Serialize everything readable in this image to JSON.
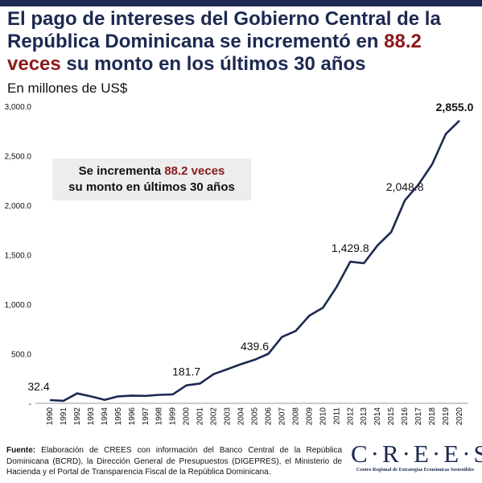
{
  "title": {
    "part1": "El pago de intereses del Gobierno Central de la República Dominicana se incrementó en ",
    "highlight": "88.2 veces",
    "part2": " su monto en los últimos 30 años"
  },
  "colors": {
    "navy": "#1c2951",
    "accent": "#8b1a1a",
    "callout_bg": "#ededed"
  },
  "callout": {
    "part1": "Se incrementa ",
    "highlight": "88.2 veces",
    "part2": " su monto en últimos 30 años"
  },
  "footnote": {
    "label": "Fuente:",
    "text": " Elaboración de CREES con información del Banco Central de la República Dominicana (BCRD), la Dirección General de Presupuestos (DIGEPRES), el Ministerio de Hacienda y el Portal de Transparencia Fiscal de la República Dominicana."
  },
  "logo": {
    "word": "CREES",
    "subtitle": "Centro Regional de Estrategias Económicas Sostenibles"
  },
  "chart_data": {
    "type": "line",
    "ylabel": "En millones de US$",
    "ylim": [
      0,
      3000
    ],
    "grid": false,
    "y_ticks": [
      "-",
      "500.0",
      "1,000.0",
      "1,500.0",
      "2,000.0",
      "2,500.0",
      "3,000.0"
    ],
    "x": [
      "1990",
      "1991",
      "1992",
      "1993",
      "1994",
      "1995",
      "1996",
      "1997",
      "1998",
      "1999",
      "2000",
      "2001",
      "2002",
      "2003",
      "2004",
      "2005",
      "2006",
      "2007",
      "2008",
      "2009",
      "2010",
      "2011",
      "2012",
      "2013",
      "2014",
      "2015",
      "2016",
      "2017",
      "2018",
      "2019",
      "2020"
    ],
    "series": [
      {
        "values": [
          32.4,
          25,
          100,
          70,
          35,
          70,
          78,
          75,
          85,
          90,
          181.7,
          200,
          295,
          345,
          395,
          439.6,
          500,
          670,
          730,
          885,
          965,
          1175,
          1429.8,
          1415,
          1595,
          1730,
          2048.8,
          2210,
          2415,
          2720,
          2855.0
        ]
      }
    ],
    "data_labels": [
      {
        "index": 0,
        "text": "32.4"
      },
      {
        "index": 10,
        "text": "181.7"
      },
      {
        "index": 15,
        "text": "439.6"
      },
      {
        "index": 22,
        "text": "1,429.8"
      },
      {
        "index": 26,
        "text": "2,048.8"
      },
      {
        "index": 30,
        "text": "2,855.0"
      }
    ]
  }
}
